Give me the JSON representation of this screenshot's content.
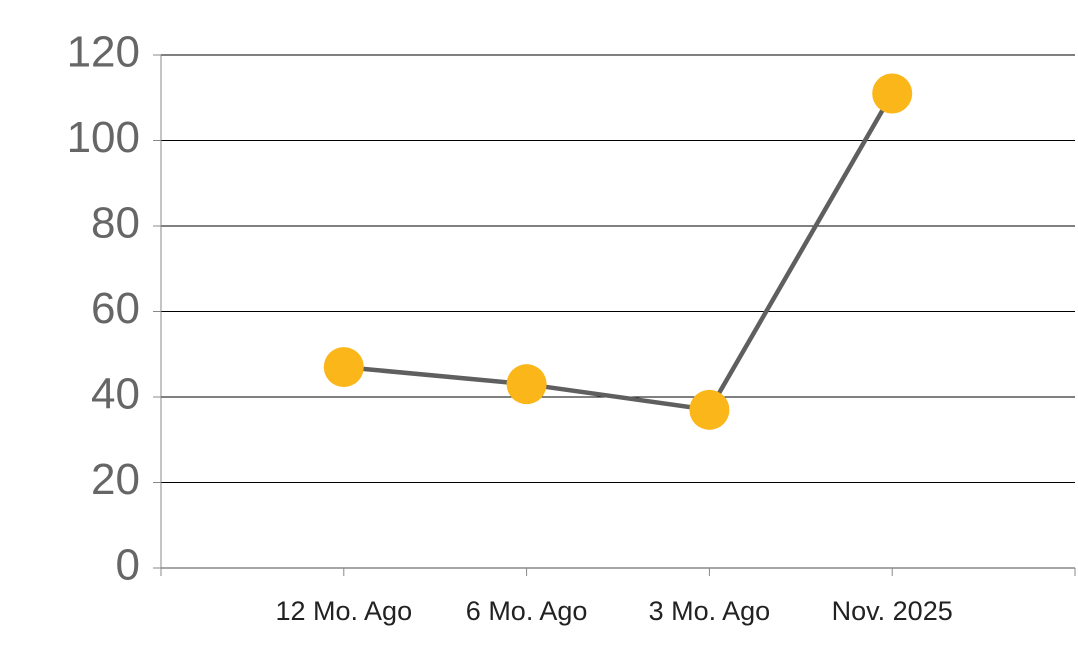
{
  "chart_data": {
    "type": "line",
    "categories": [
      "12 Mo. Ago",
      "6 Mo. Ago",
      "3 Mo. Ago",
      "Nov. 2025"
    ],
    "series": [
      {
        "values": [
          47,
          43,
          37,
          111
        ],
        "color": "#5f5f5f",
        "marker_color": "#fbb61a"
      }
    ],
    "ylim": [
      0,
      120
    ],
    "yticks": [
      0,
      20,
      40,
      60,
      80,
      100,
      120
    ],
    "grid": true
  }
}
